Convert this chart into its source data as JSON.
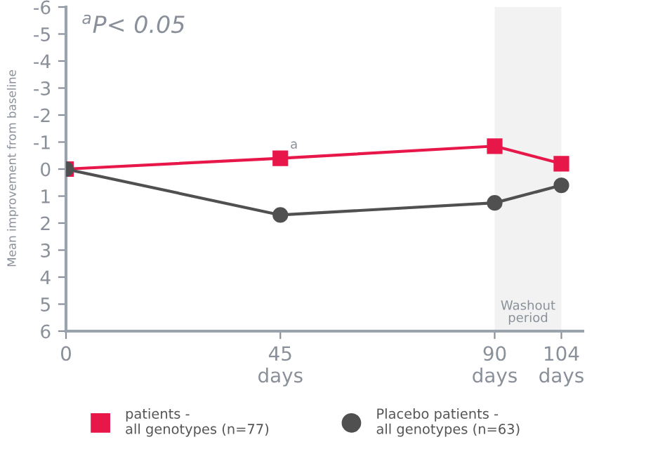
{
  "chart_data": {
    "type": "line",
    "ylabel": "Mean improvement from baseline",
    "x": [
      0,
      45,
      90,
      104
    ],
    "series": [
      {
        "name": "patients -\nall genotypes (n=77)",
        "color": "#e8174a",
        "marker": "square",
        "values": [
          0,
          -0.4,
          -0.85,
          -0.2
        ]
      },
      {
        "name": "Placebo patients -\nall genotypes (n=63)",
        "color": "#505050",
        "marker": "circle",
        "values": [
          0,
          1.7,
          1.25,
          0.6
        ]
      }
    ],
    "xlim": [
      0,
      108.5
    ],
    "xticks": [
      0,
      {
        "value": 45,
        "label": "45\ndays"
      },
      {
        "value": 90,
        "label": "90\ndays"
      },
      {
        "value": 104,
        "label": "104\ndays"
      }
    ],
    "ylim": [
      6,
      -6
    ],
    "yticks": [
      -6,
      -5,
      -4,
      -3,
      -2,
      -1,
      0,
      1,
      2,
      3,
      4,
      5,
      6
    ],
    "bands": [
      {
        "axis": "x",
        "from": 90,
        "to": 104,
        "label": "Washout\nperiod",
        "color": "#f2f2f2"
      }
    ],
    "annotations": [
      "$^{a}$P< 0.05",
      {
        "text": "a",
        "x": 45,
        "y": -0.4
      }
    ],
    "grid": false,
    "legend": "bottom",
    "line_style": "solid"
  }
}
